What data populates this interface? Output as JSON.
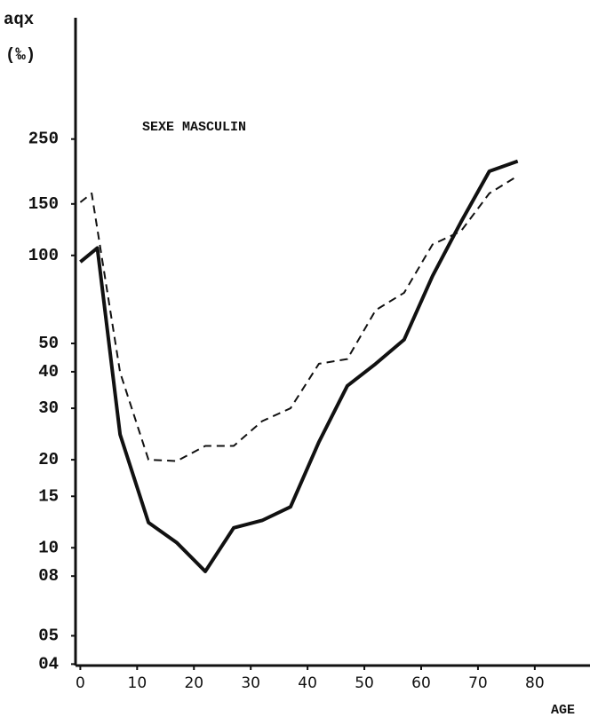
{
  "chart_data": {
    "type": "line",
    "y_label": "aqx",
    "y_unit": "(‰)",
    "annotation": "SEXE MASCULIN",
    "x_label": "AGE",
    "log_y": true,
    "xlim": [
      -1,
      88
    ],
    "ylim": [
      3.9,
      650
    ],
    "xticks": [
      0,
      10,
      20,
      30,
      40,
      50,
      60,
      70,
      80
    ],
    "yticks": [
      250,
      150,
      100,
      50,
      40,
      30,
      20,
      15,
      10,
      {
        "value": 8,
        "label": "08"
      },
      {
        "value": 5,
        "label": "05"
      },
      {
        "value": 4,
        "label": "04"
      }
    ],
    "series": [
      {
        "color": "#111111",
        "dash": false,
        "x": [
          0,
          3,
          7,
          12,
          17,
          22,
          27,
          32,
          37,
          42,
          47,
          52,
          57,
          62,
          67,
          72,
          77
        ],
        "values": [
          95,
          106,
          24.4,
          12.2,
          10.4,
          8.3,
          11.7,
          12.4,
          13.8,
          23,
          35.8,
          42.6,
          51.5,
          85,
          130,
          194,
          210
        ]
      },
      {
        "color": "#111111",
        "dash": true,
        "x": [
          0,
          2,
          7,
          12,
          17,
          22,
          27,
          32,
          37,
          42,
          47,
          52,
          57,
          62,
          67,
          72,
          77
        ],
        "values": [
          152,
          163,
          39.8,
          20,
          19.8,
          22.3,
          22.3,
          27.1,
          30,
          42.6,
          44.2,
          65,
          74.5,
          109,
          121,
          163,
          187
        ]
      }
    ]
  }
}
